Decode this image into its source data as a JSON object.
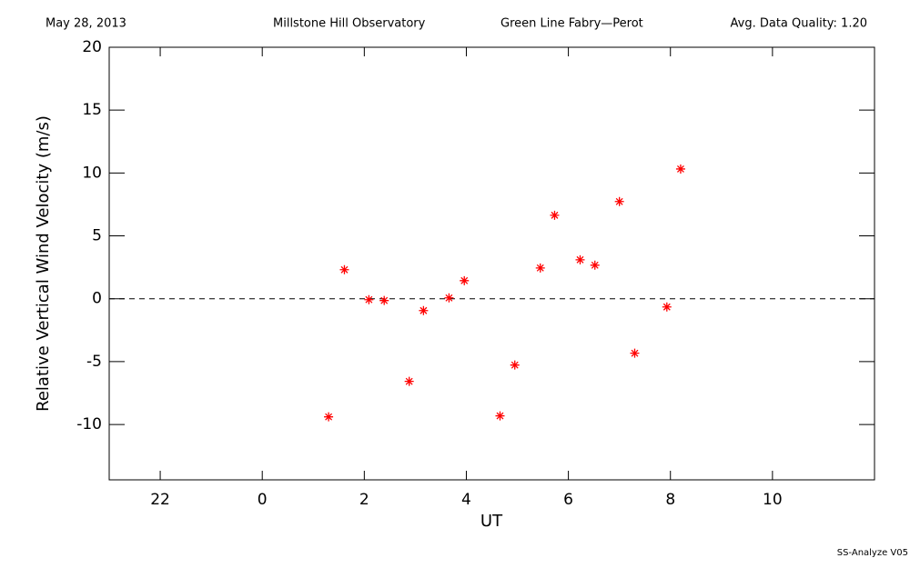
{
  "chart_data": {
    "type": "scatter",
    "header": [
      "May 28, 2013",
      "Millstone Hill Observatory",
      "Green Line Fabry—Perot",
      "Avg. Data Quality: 1.20"
    ],
    "footer": "SS-Analyze V05",
    "xlabel": "UT",
    "ylabel": "Relative Vertical Wind Velocity (m/s)",
    "xlim": [
      -3,
      12
    ],
    "ylim": [
      -14.4,
      20
    ],
    "xticks": [
      {
        "value": -2,
        "label": "22"
      },
      0,
      2,
      4,
      6,
      8,
      10
    ],
    "yticks": [
      -10,
      -5,
      0,
      5,
      10,
      15,
      20
    ],
    "hline": 0,
    "series": [
      {
        "color": "#ff0000",
        "x": [
          1.3,
          1.61,
          2.09,
          2.39,
          2.88,
          3.16,
          3.66,
          3.96,
          4.66,
          4.95,
          5.45,
          5.73,
          6.23,
          6.52,
          7.0,
          7.3,
          7.93,
          8.2
        ],
        "y": [
          -9.39,
          2.31,
          -0.07,
          -0.14,
          -6.57,
          -0.94,
          0.07,
          1.44,
          -9.31,
          -5.27,
          2.45,
          6.64,
          3.1,
          2.67,
          7.73,
          -4.33,
          -0.65,
          10.32
        ]
      }
    ]
  }
}
